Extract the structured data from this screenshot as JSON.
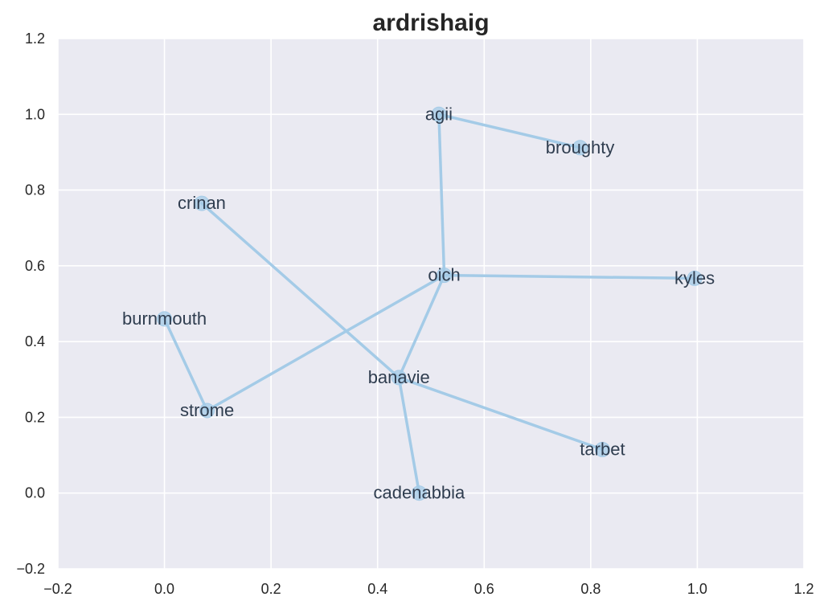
{
  "chart_data": {
    "type": "scatter",
    "title": "ardrishaig",
    "xlabel": "",
    "ylabel": "",
    "xlim": [
      -0.2,
      1.2
    ],
    "ylim": [
      -0.2,
      1.2
    ],
    "xticks": [
      -0.2,
      0.0,
      0.2,
      0.4,
      0.6,
      0.8,
      1.0,
      1.2
    ],
    "yticks": [
      -0.2,
      0.0,
      0.2,
      0.4,
      0.6,
      0.8,
      1.0,
      1.2
    ],
    "xtick_labels": [
      "−0.2",
      "0.0",
      "0.2",
      "0.4",
      "0.6",
      "0.8",
      "1.0",
      "1.2"
    ],
    "ytick_labels": [
      "−0.2",
      "0.0",
      "0.2",
      "0.4",
      "0.6",
      "0.8",
      "1.0",
      "1.2"
    ],
    "grid": true,
    "background_color": "#eaeaf2",
    "edge_color": "#a4cbe7",
    "node_color": "#a4cbe7",
    "nodes": [
      {
        "id": "agii",
        "x": 0.515,
        "y": 1.0
      },
      {
        "id": "broughty",
        "x": 0.78,
        "y": 0.912
      },
      {
        "id": "crinan",
        "x": 0.07,
        "y": 0.765
      },
      {
        "id": "oich",
        "x": 0.525,
        "y": 0.575
      },
      {
        "id": "kyles",
        "x": 0.995,
        "y": 0.567
      },
      {
        "id": "burnmouth",
        "x": 0.0,
        "y": 0.46
      },
      {
        "id": "banavie",
        "x": 0.44,
        "y": 0.305
      },
      {
        "id": "strome",
        "x": 0.08,
        "y": 0.218
      },
      {
        "id": "tarbet",
        "x": 0.822,
        "y": 0.115
      },
      {
        "id": "cadenabbia",
        "x": 0.478,
        "y": 0.0
      }
    ],
    "edges": [
      [
        "agii",
        "broughty"
      ],
      [
        "agii",
        "oich"
      ],
      [
        "oich",
        "kyles"
      ],
      [
        "oich",
        "strome"
      ],
      [
        "oich",
        "banavie"
      ],
      [
        "crinan",
        "banavie"
      ],
      [
        "burnmouth",
        "strome"
      ],
      [
        "banavie",
        "tarbet"
      ],
      [
        "banavie",
        "cadenabbia"
      ]
    ]
  }
}
